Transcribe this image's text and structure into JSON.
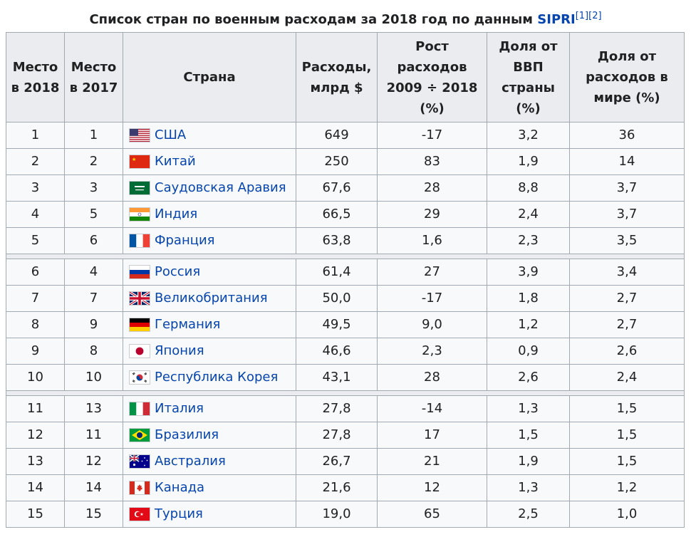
{
  "caption": {
    "text": "Список стран по военным расходам за 2018 год по данным ",
    "link": "SIPRI",
    "ref1": "[1]",
    "ref2": "[2]"
  },
  "headers": {
    "rank2018": "Место в 2018",
    "rank2017": "Место в 2017",
    "country": "Страна",
    "spending": "Расходы, млрд $",
    "growth": "Рост расходов 2009 ÷ 2018 (%)",
    "gdp_share": "Доля от ВВП страны (%)",
    "world_share": "Доля от расходов в мире (%)"
  },
  "groups": [
    [
      {
        "r18": "1",
        "r17": "1",
        "flag": "us-flag",
        "country": "США",
        "spend": "649",
        "growth": "-17",
        "gdp": "3,2",
        "world": "36"
      },
      {
        "r18": "2",
        "r17": "2",
        "flag": "cn-flag",
        "country": "Китай",
        "spend": "250",
        "growth": "83",
        "gdp": "1,9",
        "world": "14"
      },
      {
        "r18": "3",
        "r17": "3",
        "flag": "sa-flag",
        "country": "Саудовская Аравия",
        "spend": "67,6",
        "growth": "28",
        "gdp": "8,8",
        "world": "3,7"
      },
      {
        "r18": "4",
        "r17": "5",
        "flag": "in-flag",
        "country": "Индия",
        "spend": "66,5",
        "growth": "29",
        "gdp": "2,4",
        "world": "3,7"
      },
      {
        "r18": "5",
        "r17": "6",
        "flag": "fr-flag",
        "country": "Франция",
        "spend": "63,8",
        "growth": "1,6",
        "gdp": "2,3",
        "world": "3,5"
      }
    ],
    [
      {
        "r18": "6",
        "r17": "4",
        "flag": "ru-flag",
        "country": "Россия",
        "spend": "61,4",
        "growth": "27",
        "gdp": "3,9",
        "world": "3,4"
      },
      {
        "r18": "7",
        "r17": "7",
        "flag": "gb-flag",
        "country": "Великобритания",
        "spend": "50,0",
        "growth": "-17",
        "gdp": "1,8",
        "world": "2,7"
      },
      {
        "r18": "8",
        "r17": "9",
        "flag": "de-flag",
        "country": "Германия",
        "spend": "49,5",
        "growth": "9,0",
        "gdp": "1,2",
        "world": "2,7"
      },
      {
        "r18": "9",
        "r17": "8",
        "flag": "jp-flag",
        "country": "Япония",
        "spend": "46,6",
        "growth": "2,3",
        "gdp": "0,9",
        "world": "2,6"
      },
      {
        "r18": "10",
        "r17": "10",
        "flag": "kr-flag",
        "country": "Республика Корея",
        "spend": "43,1",
        "growth": "28",
        "gdp": "2,6",
        "world": "2,4"
      }
    ],
    [
      {
        "r18": "11",
        "r17": "13",
        "flag": "it-flag",
        "country": "Италия",
        "spend": "27,8",
        "growth": "-14",
        "gdp": "1,3",
        "world": "1,5"
      },
      {
        "r18": "12",
        "r17": "11",
        "flag": "br-flag",
        "country": "Бразилия",
        "spend": "27,8",
        "growth": "17",
        "gdp": "1,5",
        "world": "1,5"
      },
      {
        "r18": "13",
        "r17": "12",
        "flag": "au-flag",
        "country": "Австралия",
        "spend": "26,7",
        "growth": "21",
        "gdp": "1,9",
        "world": "1,5"
      },
      {
        "r18": "14",
        "r17": "14",
        "flag": "ca-flag",
        "country": "Канада",
        "spend": "21,6",
        "growth": "12",
        "gdp": "1,3",
        "world": "1,2"
      },
      {
        "r18": "15",
        "r17": "15",
        "flag": "tr-flag",
        "country": "Турция",
        "spend": "19,0",
        "growth": "65",
        "gdp": "2,5",
        "world": "1,0"
      }
    ]
  ],
  "colors": {
    "link": "#0645ad",
    "header_bg": "#eaecf0",
    "border": "#a2a9b1"
  }
}
